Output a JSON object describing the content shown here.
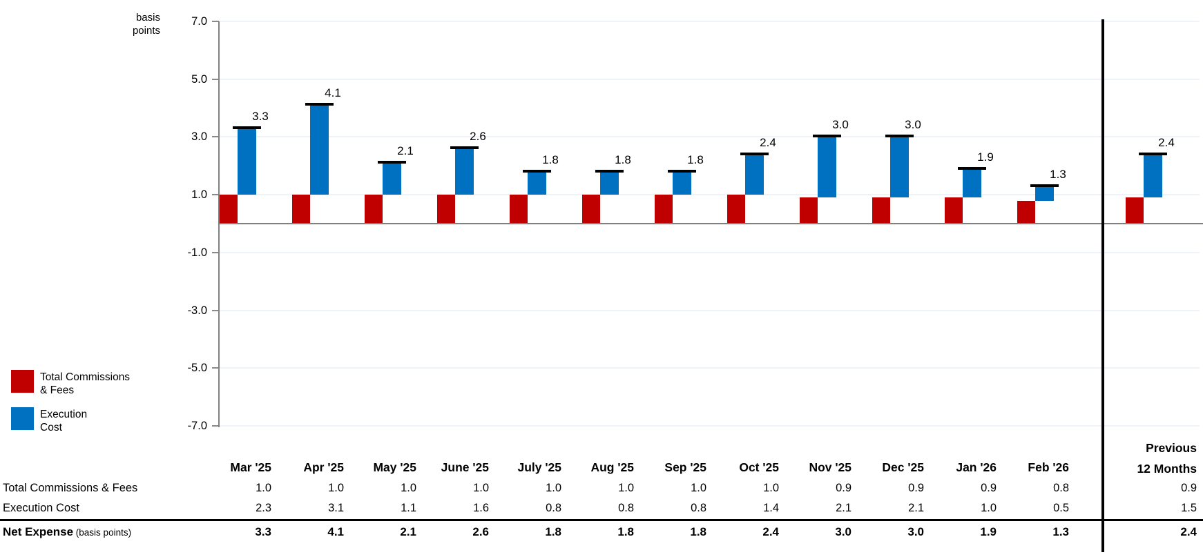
{
  "chart": {
    "unit_label": [
      "basis",
      "points"
    ]
  },
  "chart_data": {
    "type": "bar",
    "subtype": "stacked-offset segments with black total cap markers",
    "title": "",
    "ylabel": "basis points",
    "ylim": [
      -7.0,
      7.0
    ],
    "yticks": [
      7.0,
      5.0,
      3.0,
      1.0,
      -1.0,
      -3.0,
      -5.0,
      -7.0
    ],
    "grid": true,
    "legend_position": "bottom-left",
    "categories": [
      "Mar '25",
      "Apr '25",
      "May '25",
      "June '25",
      "July '25",
      "Aug '25",
      "Sep '25",
      "Oct '25",
      "Nov '25",
      "Dec '25",
      "Jan '26",
      "Feb '26",
      "Previous 12 Months"
    ],
    "series": [
      {
        "name": "Total Commissions & Fees",
        "color": "#C00000",
        "values": [
          1.0,
          1.0,
          1.0,
          1.0,
          1.0,
          1.0,
          1.0,
          1.0,
          0.9,
          0.9,
          0.9,
          0.8,
          0.9
        ]
      },
      {
        "name": "Execution Cost",
        "color": "#0070C0",
        "values": [
          2.3,
          3.1,
          1.1,
          1.6,
          0.8,
          0.8,
          0.8,
          1.4,
          2.1,
          2.1,
          1.0,
          0.5,
          1.5
        ]
      }
    ],
    "totals": [
      3.3,
      4.1,
      2.1,
      2.6,
      1.8,
      1.8,
      1.8,
      2.4,
      3.0,
      3.0,
      1.9,
      1.3,
      2.4
    ]
  },
  "legend": {
    "items": [
      {
        "id": "total-commissions-fees",
        "lines": [
          "Total Commissions",
          "& Fees"
        ],
        "color": "#C00000"
      },
      {
        "id": "execution-cost",
        "lines": [
          "Execution",
          "Cost"
        ],
        "color": "#0070C0"
      }
    ]
  },
  "table": {
    "month_headers": [
      "Mar '25",
      "Apr '25",
      "May '25",
      "June '25",
      "July '25",
      "Aug '25",
      "Sep '25",
      "Oct '25",
      "Nov '25",
      "Dec '25",
      "Jan '26",
      "Feb '26"
    ],
    "summary_header": [
      "Previous",
      "12 Months"
    ],
    "rows": [
      {
        "label": "Total Commissions & Fees",
        "suffix": "",
        "bold": false,
        "values": [
          "1.0",
          "1.0",
          "1.0",
          "1.0",
          "1.0",
          "1.0",
          "1.0",
          "1.0",
          "0.9",
          "0.9",
          "0.9",
          "0.8"
        ],
        "summary": "0.9"
      },
      {
        "label": "Execution Cost",
        "suffix": "",
        "bold": false,
        "values": [
          "2.3",
          "3.1",
          "1.1",
          "1.6",
          "0.8",
          "0.8",
          "0.8",
          "1.4",
          "2.1",
          "2.1",
          "1.0",
          "0.5"
        ],
        "summary": "1.5"
      },
      {
        "label": "Net Expense",
        "suffix": " (basis points)",
        "bold": true,
        "values": [
          "3.3",
          "4.1",
          "2.1",
          "2.6",
          "1.8",
          "1.8",
          "1.8",
          "2.4",
          "3.0",
          "3.0",
          "1.9",
          "1.3"
        ],
        "summary": "2.4"
      }
    ]
  },
  "colors": {
    "commissions_red": "#C00000",
    "execution_blue": "#0070C0",
    "axis_gray": "#808080",
    "gridline": "#EDF3F9",
    "marker_black": "#000000"
  }
}
